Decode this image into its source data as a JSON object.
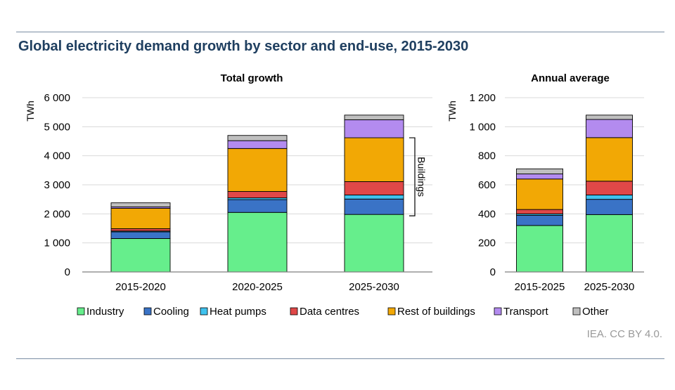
{
  "title": "Global electricity demand growth by sector and end-use, 2015-2030",
  "source": "IEA. CC BY 4.0.",
  "chart_data": [
    {
      "type": "bar",
      "stacked": true,
      "title": "Total  growth",
      "ylabel": "TWh",
      "ylim": [
        0,
        6000
      ],
      "yticks": [
        0,
        1000,
        2000,
        3000,
        4000,
        5000,
        6000
      ],
      "ytick_labels": [
        "0",
        "1 000",
        "2 000",
        "3 000",
        "4 000",
        "5 000",
        "6 000"
      ],
      "categories": [
        "2015-2020",
        "2020-2025",
        "2025-2030"
      ],
      "series": [
        {
          "name": "Industry",
          "values": [
            1150,
            2050,
            1980
          ]
        },
        {
          "name": "Cooling",
          "values": [
            230,
            440,
            530
          ]
        },
        {
          "name": "Heat pumps",
          "values": [
            30,
            60,
            140
          ]
        },
        {
          "name": "Data centres",
          "values": [
            80,
            220,
            460
          ]
        },
        {
          "name": "Rest of buildings",
          "values": [
            700,
            1480,
            1510
          ]
        },
        {
          "name": "Transport",
          "values": [
            50,
            270,
            620
          ]
        },
        {
          "name": "Other",
          "values": [
            140,
            180,
            160
          ]
        }
      ],
      "annotation": "Buildings"
    },
    {
      "type": "bar",
      "stacked": true,
      "title": "Annual average",
      "ylabel": "TWh",
      "ylim": [
        0,
        1200
      ],
      "yticks": [
        0,
        200,
        400,
        600,
        800,
        1000,
        1200
      ],
      "ytick_labels": [
        "0",
        "200",
        "400",
        "600",
        "800",
        "1 000",
        "1 200"
      ],
      "categories": [
        "2015-2025",
        "2025-2030"
      ],
      "series": [
        {
          "name": "Industry",
          "values": [
            320,
            395
          ]
        },
        {
          "name": "Cooling",
          "values": [
            70,
            105
          ]
        },
        {
          "name": "Heat pumps",
          "values": [
            10,
            30
          ]
        },
        {
          "name": "Data centres",
          "values": [
            30,
            95
          ]
        },
        {
          "name": "Rest of buildings",
          "values": [
            210,
            300
          ]
        },
        {
          "name": "Transport",
          "values": [
            35,
            125
          ]
        },
        {
          "name": "Other",
          "values": [
            35,
            30
          ]
        }
      ]
    }
  ],
  "legend": [
    {
      "name": "Industry",
      "color": "#66ee8c"
    },
    {
      "name": "Cooling",
      "color": "#3a73c6"
    },
    {
      "name": "Heat pumps",
      "color": "#3fc2ee"
    },
    {
      "name": "Data centres",
      "color": "#e04848"
    },
    {
      "name": "Rest of buildings",
      "color": "#f2a805"
    },
    {
      "name": "Transport",
      "color": "#b38bef"
    },
    {
      "name": "Other",
      "color": "#bfbfbf"
    }
  ]
}
